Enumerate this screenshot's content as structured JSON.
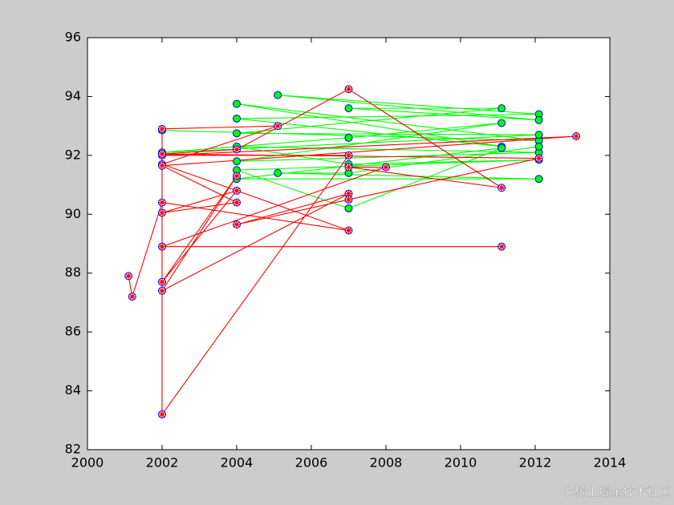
{
  "chart_data": {
    "type": "line",
    "xlim": [
      2000,
      2014
    ],
    "xticks": [
      2000,
      2002,
      2004,
      2006,
      2008,
      2010,
      2012,
      2014
    ],
    "ylim": [
      82,
      96
    ],
    "yticks": [
      82,
      84,
      86,
      88,
      90,
      92,
      94,
      96
    ],
    "series": [
      {
        "color": "#00ff00",
        "marker": "circle",
        "marker_face": "#00ff00",
        "marker_edge": "#0000ff",
        "x": [
          2002,
          2012.1,
          2004,
          2011.1,
          2004,
          2012.1,
          2005.1,
          2012.1,
          2007,
          2011.1,
          2004,
          2012.1,
          2002,
          2007,
          2011.1,
          2004,
          2012.1,
          2004,
          2007,
          2012.1,
          2004,
          2007,
          2011.1,
          2004,
          2012.1,
          2005.1,
          2007,
          2012.1
        ],
        "values": [
          92.85,
          92.5,
          93.75,
          92.3,
          93.25,
          93.4,
          94.05,
          93.2,
          93.6,
          93.6,
          92.75,
          92.7,
          92.1,
          92.6,
          93.1,
          91.8,
          92.1,
          92.3,
          91.7,
          91.85,
          91.5,
          90.2,
          92.25,
          91.2,
          91.2,
          91.4,
          91.4,
          92.3
        ]
      },
      {
        "color": "#ff0000",
        "marker": "circle-star",
        "marker_face": "#ff0000",
        "marker_edge": "#0000ff",
        "x": [
          2001.1,
          2001.2,
          2002,
          2007,
          2002,
          2005.1,
          2002,
          2002,
          2007,
          2002,
          2013.1,
          2002,
          2004,
          2002,
          2004,
          2002,
          2004,
          2002,
          2007,
          2004,
          2007,
          2012.1,
          2002,
          2004,
          2007,
          2011.1,
          2007,
          2008,
          2002,
          2011.1
        ],
        "values": [
          87.9,
          87.2,
          90.4,
          89.45,
          91.7,
          93.0,
          92.9,
          83.2,
          92.0,
          92.0,
          92.65,
          91.65,
          90.4,
          90.05,
          90.8,
          87.7,
          91.3,
          87.4,
          90.7,
          89.65,
          90.5,
          91.9,
          92.05,
          92.2,
          94.25,
          90.9,
          91.6,
          91.6,
          88.9,
          88.9
        ]
      }
    ],
    "watermark": "@稀土掘金技术社区"
  }
}
